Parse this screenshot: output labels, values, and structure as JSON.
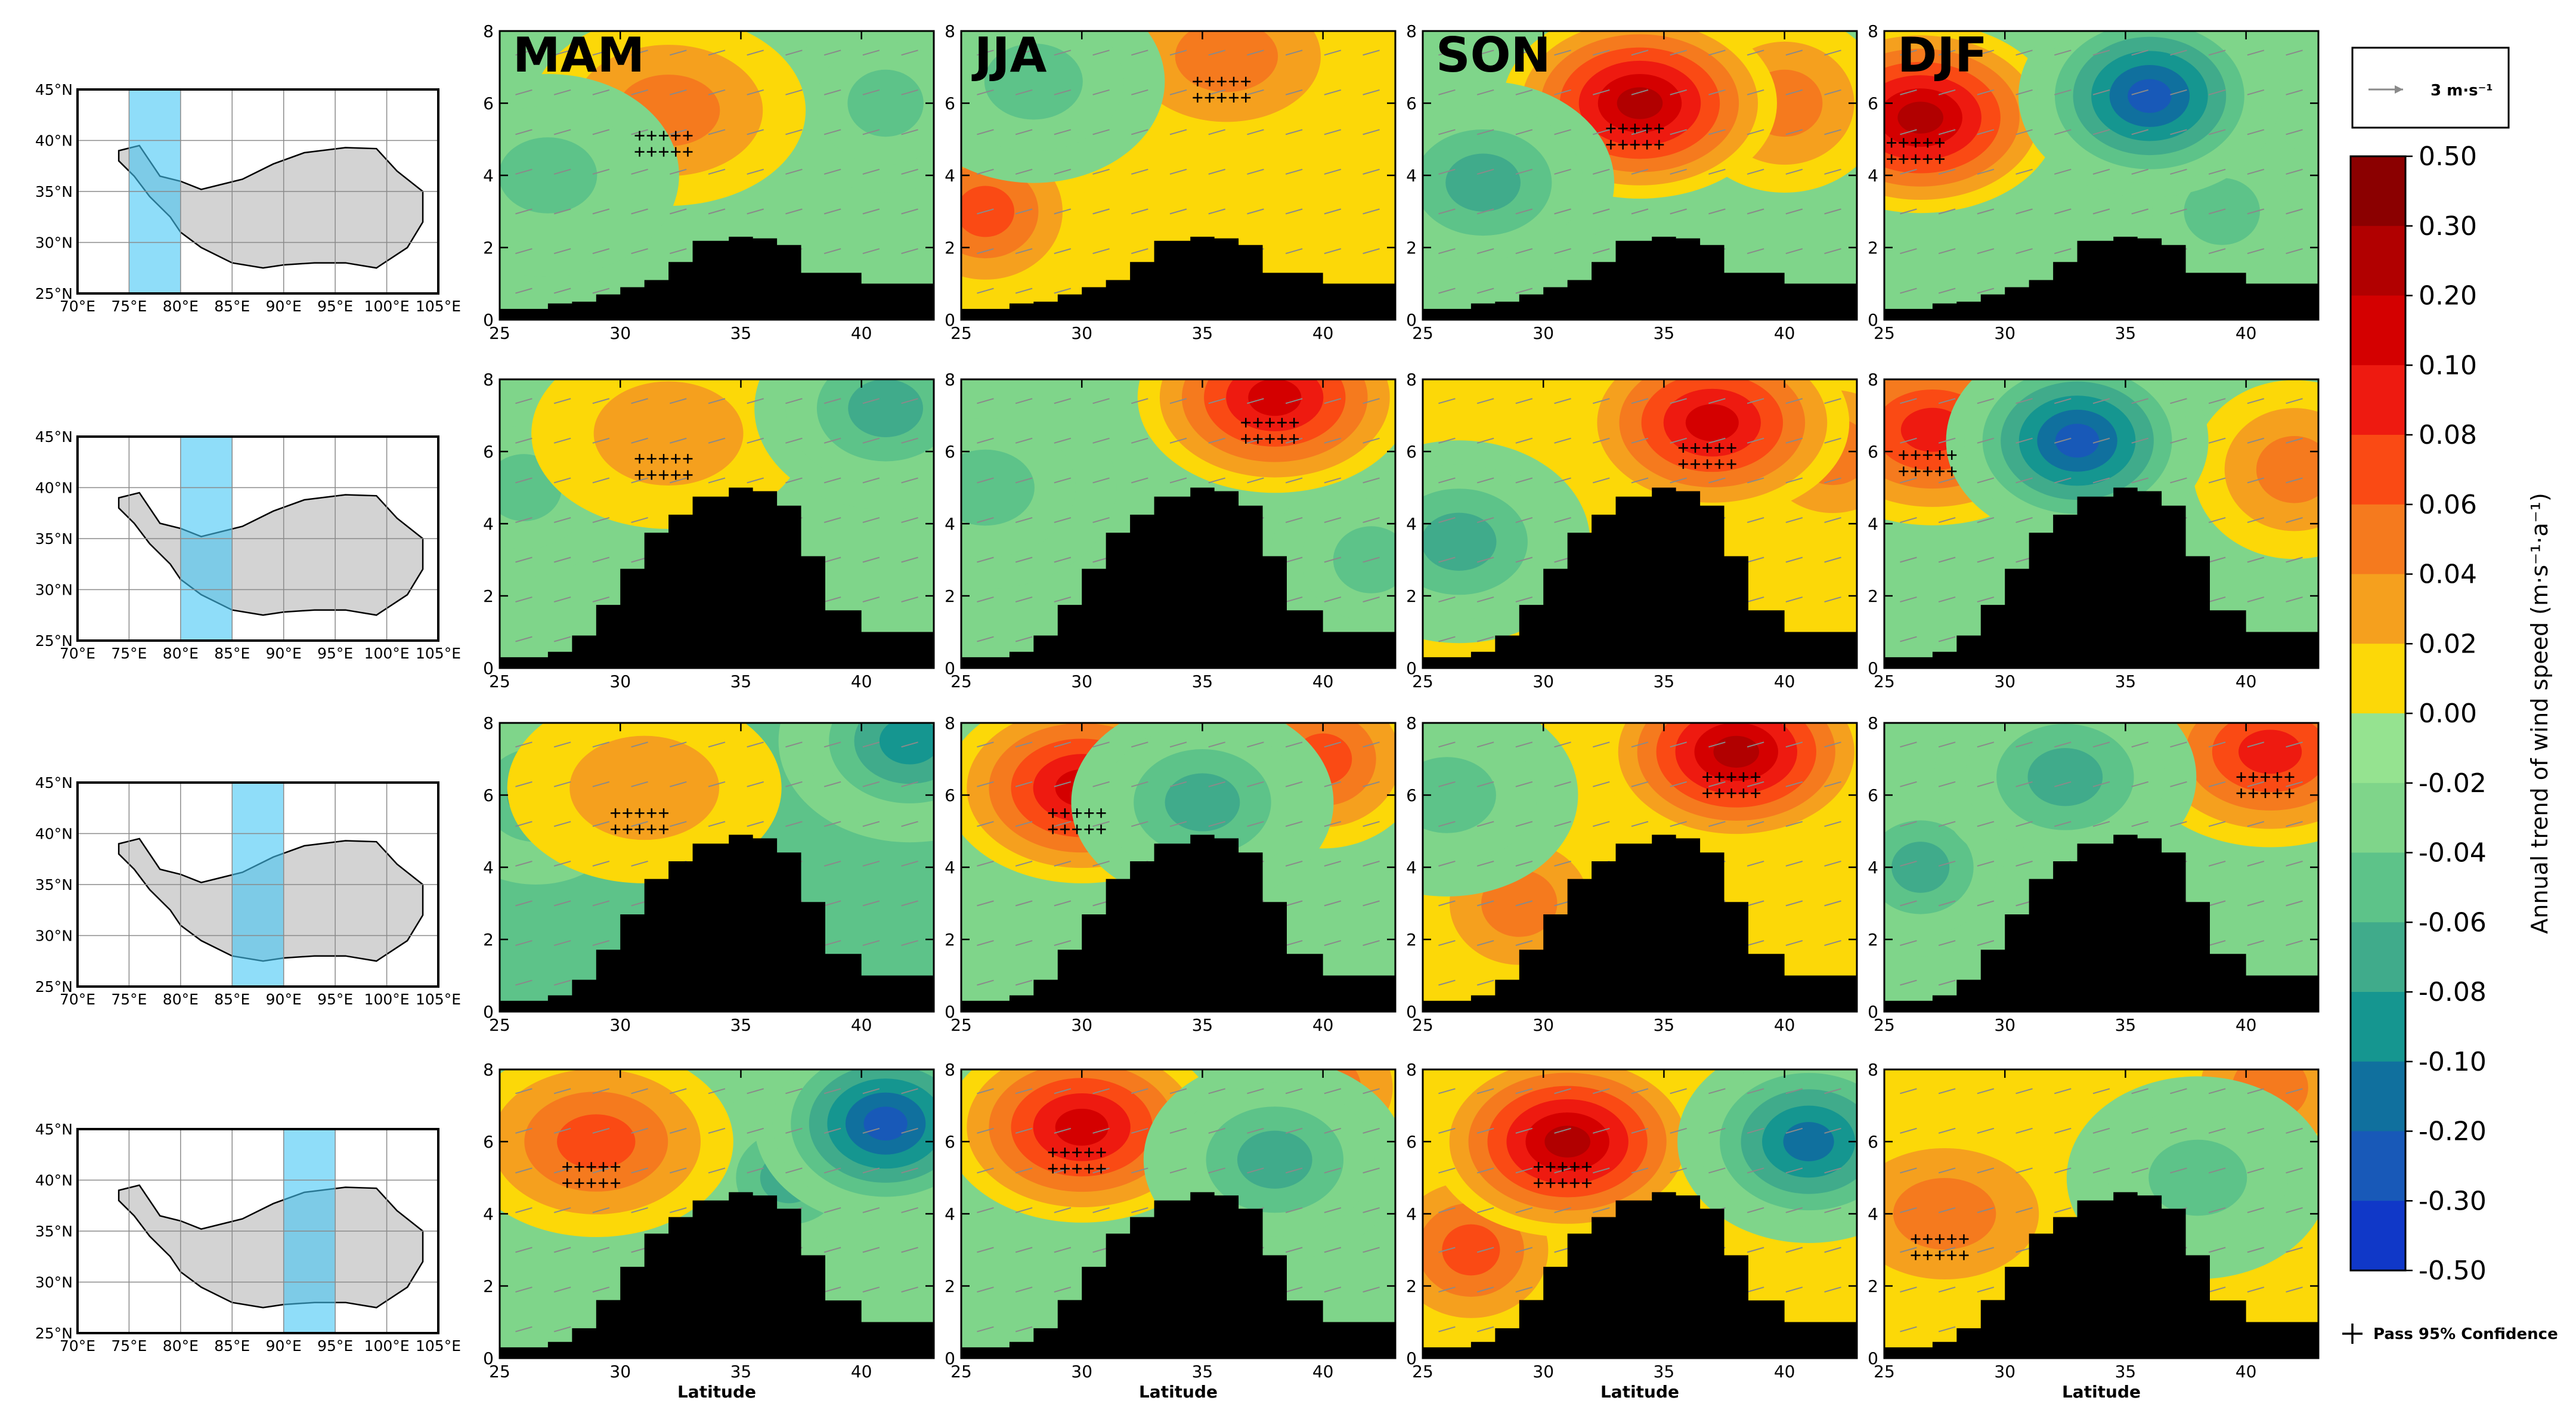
{
  "chart_data": {
    "type": "heatmap",
    "description_kind": "latitude-height cross sections of annual wind speed trend",
    "season_titles": [
      "MAM",
      "JJA",
      "SON",
      "DJF"
    ],
    "longitude_bands": [
      "75°E-80°E",
      "80°E-85°E",
      "85°E-90°E",
      "90°E-95°E"
    ],
    "x_axis": {
      "label": "Latitude",
      "ticks": [
        25,
        30,
        35,
        40
      ],
      "range": [
        25,
        43
      ]
    },
    "y_axis": {
      "ticks": [
        0,
        2,
        4,
        6,
        8
      ],
      "range": [
        0,
        8
      ]
    },
    "map": {
      "lon_ticks": [
        "70°E",
        "75°E",
        "80°E",
        "85°E",
        "90°E",
        "95°E",
        "100°E",
        "105°E"
      ],
      "lat_ticks": [
        "45°N",
        "40°N",
        "35°N",
        "30°N",
        "25°N"
      ],
      "band_start_lon": [
        75,
        80,
        85,
        90
      ],
      "band_width_deg": 5
    },
    "colorbar": {
      "label": "Annual trend of wind speed (m·s⁻¹·a⁻¹)",
      "ticks": [
        "0.50",
        "0.30",
        "0.20",
        "0.10",
        "0.08",
        "0.06",
        "0.04",
        "0.02",
        "0.00",
        "-0.02",
        "-0.04",
        "-0.06",
        "-0.08",
        "-0.10",
        "-0.20",
        "-0.30",
        "-0.50"
      ],
      "colors": [
        "#8b0000",
        "#b10000",
        "#d40000",
        "#ee1a10",
        "#fa4a14",
        "#f57a1e",
        "#f5a01e",
        "#fcd808",
        "#95e390",
        "#7fd58a",
        "#5dc389",
        "#40ab8b",
        "#159690",
        "#10709e",
        "#1859b8",
        "#1038c8"
      ]
    },
    "reference_vector": "3 m·s⁻¹",
    "legend_text": "Pass 95% Confidence",
    "terrain_color": "#000000",
    "panel_fields": [
      [
        {
          "row": 0,
          "col": 0,
          "ridge": 2.3,
          "bg": -1,
          "warm_lat": 32,
          "warm_alt": 5.8,
          "warm_val": 2,
          "cool_lat": 27,
          "cool_alt": 4,
          "cool_val": -2,
          "cool2_lat": 41,
          "cool2_alt": 6,
          "cool2_val": -2
        },
        {
          "row": 0,
          "col": 1,
          "ridge": 2.3,
          "bg": 0,
          "warm_lat": 36,
          "warm_alt": 7.3,
          "warm_val": 2,
          "cool_lat": 28,
          "cool_alt": 6.6,
          "cool_val": -2,
          "cool2_lat": 26,
          "cool2_alt": 3,
          "cool2_val": 3
        },
        {
          "row": 0,
          "col": 2,
          "ridge": 2.3,
          "bg": -1,
          "warm_lat": 34,
          "warm_alt": 6,
          "warm_val": 6,
          "cool_lat": 27.5,
          "cool_alt": 3.8,
          "cool_val": -3,
          "cool2_lat": 40,
          "cool2_alt": 6,
          "cool2_val": 2
        },
        {
          "row": 0,
          "col": 3,
          "ridge": 2.3,
          "bg": -1,
          "warm_lat": 26.5,
          "warm_alt": 5.6,
          "warm_val": 6,
          "cool_lat": 36,
          "cool_alt": 6.2,
          "cool_val": -6,
          "cool2_lat": 39,
          "cool2_alt": 3,
          "cool2_val": -2
        }
      ],
      [
        {
          "row": 1,
          "col": 0,
          "ridge": 5.0,
          "bg": -1,
          "warm_lat": 32,
          "warm_alt": 6.5,
          "warm_val": 1,
          "cool_lat": 41,
          "cool_alt": 7.2,
          "cool_val": -3,
          "cool2_lat": 26,
          "cool2_alt": 5,
          "cool2_val": -2
        },
        {
          "row": 1,
          "col": 1,
          "ridge": 5.0,
          "bg": -1,
          "warm_lat": 38,
          "warm_alt": 7.5,
          "warm_val": 5,
          "cool_lat": 26,
          "cool_alt": 5,
          "cool_val": -2,
          "cool2_lat": 42,
          "cool2_alt": 3,
          "cool2_val": -2
        },
        {
          "row": 1,
          "col": 2,
          "ridge": 5.0,
          "bg": 0,
          "warm_lat": 37,
          "warm_alt": 6.8,
          "warm_val": 5,
          "cool_lat": 26.5,
          "cool_alt": 3.5,
          "cool_val": -3,
          "cool2_lat": 42,
          "cool2_alt": 6,
          "cool2_val": 2
        },
        {
          "row": 1,
          "col": 3,
          "ridge": 5.0,
          "bg": -1,
          "warm_lat": 27,
          "warm_alt": 6.6,
          "warm_val": 4,
          "cool_lat": 33,
          "cool_alt": 6.3,
          "cool_val": -6,
          "cool2_lat": 42,
          "cool2_alt": 5.5,
          "cool2_val": 2
        }
      ],
      [
        {
          "row": 2,
          "col": 0,
          "ridge": 4.9,
          "bg": -2,
          "warm_lat": 31,
          "warm_alt": 6.2,
          "warm_val": 1,
          "cool_lat": 42,
          "cool_alt": 7.5,
          "cool_val": -4,
          "cool2_lat": 26.5,
          "cool2_alt": 6,
          "cool2_val": -3
        },
        {
          "row": 2,
          "col": 1,
          "ridge": 4.9,
          "bg": -1,
          "warm_lat": 30,
          "warm_alt": 6.2,
          "warm_val": 5,
          "cool_lat": 35,
          "cool_alt": 5.8,
          "cool_val": -3,
          "cool2_lat": 40,
          "cool2_alt": 7,
          "cool2_val": 3
        },
        {
          "row": 2,
          "col": 2,
          "ridge": 4.9,
          "bg": 0,
          "warm_lat": 38,
          "warm_alt": 7.2,
          "warm_val": 6,
          "cool_lat": 26,
          "cool_alt": 6,
          "cool_val": -2,
          "cool2_lat": 29,
          "cool2_alt": 3,
          "cool2_val": 2
        },
        {
          "row": 2,
          "col": 3,
          "ridge": 4.9,
          "bg": -1,
          "warm_lat": 41,
          "warm_alt": 7.2,
          "warm_val": 4,
          "cool_lat": 32.5,
          "cool_alt": 6.5,
          "cool_val": -3,
          "cool2_lat": 26.5,
          "cool2_alt": 4,
          "cool2_val": -3
        }
      ],
      [
        {
          "row": 3,
          "col": 0,
          "ridge": 4.6,
          "bg": -1,
          "warm_lat": 29,
          "warm_alt": 6,
          "warm_val": 3,
          "cool_lat": 41,
          "cool_alt": 6.5,
          "cool_val": -6,
          "cool2_lat": 37,
          "cool2_alt": 5,
          "cool2_val": -3
        },
        {
          "row": 3,
          "col": 1,
          "ridge": 4.6,
          "bg": -1,
          "warm_lat": 30,
          "warm_alt": 6.4,
          "warm_val": 5,
          "cool_lat": 38,
          "cool_alt": 5.5,
          "cool_val": -3,
          "cool2_lat": 40,
          "cool2_alt": 7.5,
          "cool2_val": 2
        },
        {
          "row": 3,
          "col": 2,
          "ridge": 4.6,
          "bg": 0,
          "warm_lat": 31,
          "warm_alt": 6,
          "warm_val": 6,
          "cool_lat": 41,
          "cool_alt": 6,
          "cool_val": -5,
          "cool2_lat": 27,
          "cool2_alt": 3,
          "cool2_val": 3
        },
        {
          "row": 3,
          "col": 3,
          "ridge": 4.6,
          "bg": 0,
          "warm_lat": 27.5,
          "warm_alt": 4,
          "warm_val": 2,
          "cool_lat": 38,
          "cool_alt": 5,
          "cool_val": -2,
          "cool2_lat": 41,
          "cool2_alt": 7.5,
          "cool2_val": 2
        }
      ]
    ]
  }
}
